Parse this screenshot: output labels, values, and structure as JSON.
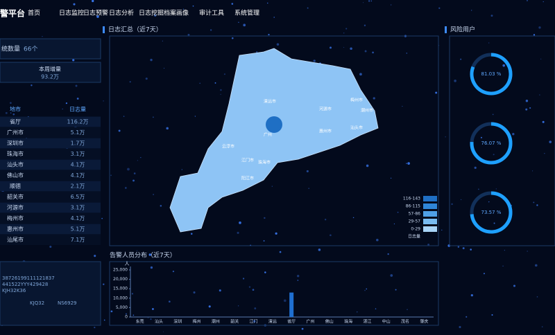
{
  "header": {
    "brand": "警平台",
    "nav": [
      "首页",
      "日志监控",
      "日志预警",
      "日志分析",
      "日志挖掘",
      "档案画像",
      "审计工具",
      "系统管理"
    ]
  },
  "left": {
    "system_count": {
      "label": "统数量",
      "value": "66个"
    },
    "weekly": {
      "label": "本周增量",
      "value": "93.2万"
    },
    "table": {
      "columns": [
        "地市",
        "日志量"
      ],
      "rows": [
        [
          "省厅",
          "116.2万"
        ],
        [
          "广州市",
          "5.1万"
        ],
        [
          "深圳市",
          "1.7万"
        ],
        [
          "珠海市",
          "3.1万"
        ],
        [
          "汕头市",
          "4.1万"
        ],
        [
          "佛山市",
          "4.1万"
        ],
        [
          "顺德",
          "2.1万"
        ],
        [
          "韶关市",
          "6.5万"
        ],
        [
          "河源市",
          "3.1万"
        ],
        [
          "梅州市",
          "4.1万"
        ],
        [
          "惠州市",
          "5.1万"
        ],
        [
          "汕尾市",
          "7.1万"
        ]
      ]
    },
    "codes": [
      "38726199111121837",
      "441522YYY429428",
      "KJH32K36",
      "KJQ32",
      "NS6929"
    ]
  },
  "map": {
    "title": "日志汇总（近7天）",
    "cities": [
      "清远市",
      "河源市",
      "梅州市",
      "潮州市",
      "广州",
      "惠州市",
      "云浮市",
      "江门市",
      "珠海市",
      "阳江市",
      "汕头市"
    ],
    "legend": {
      "title": "日志量",
      "ranges": [
        "116-143",
        "86-115",
        "57-86",
        "29-57",
        "0-29"
      ],
      "colors": [
        "#1f6fc4",
        "#2f86d8",
        "#4fa0e6",
        "#78bbf0",
        "#a8d4f7"
      ]
    }
  },
  "risk": {
    "title": "风险用户",
    "gauges": [
      {
        "value": 81.03,
        "label": "81.03 %"
      },
      {
        "value": 76.07,
        "label": "76.07 %"
      },
      {
        "value": 73.57,
        "label": "73.57 %"
      }
    ]
  },
  "alert_chart": {
    "type": "bar",
    "title": "告警人员分布（近7天）",
    "y_label": "人",
    "color": "#1f6fd0",
    "categories": [
      "东莞",
      "汕头",
      "深圳",
      "梅州",
      "潮州",
      "韶关",
      "江门",
      "清远",
      "省厅",
      "广州",
      "佛山",
      "珠海",
      "湛江",
      "中山",
      "茂名",
      "肇庆"
    ],
    "values": [
      0,
      0,
      0,
      0,
      0,
      0,
      0,
      0,
      13000,
      0,
      0,
      0,
      0,
      0,
      0,
      0
    ],
    "ylim": [
      0,
      25000
    ],
    "yticks": [
      {
        "value": 0,
        "label": "0"
      },
      {
        "value": 5000,
        "label": "5,000"
      },
      {
        "value": 10000,
        "label": "10,000"
      },
      {
        "value": 15000,
        "label": "15,000"
      },
      {
        "value": 20000,
        "label": "20,000"
      },
      {
        "value": 25000,
        "label": "25,000"
      }
    ]
  }
}
